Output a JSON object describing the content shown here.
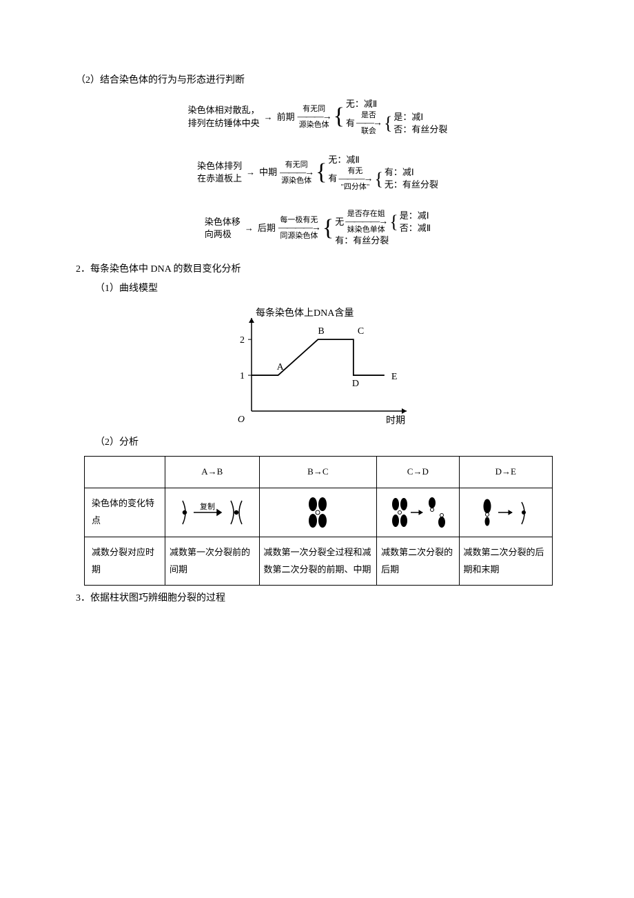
{
  "section2": {
    "label": "（2）结合染色体的行为与形态进行判断",
    "flow1": {
      "start_l1": "染色体相对散乱，",
      "start_l2": "排列在纺锤体中央",
      "phase": "前期",
      "cond_top": "有无同",
      "cond_bot": "源染色体",
      "no_label": "无：减Ⅱ",
      "yes_label": "有",
      "yes_top": "是否",
      "yes_bot": "联会",
      "r1": "是：减Ⅰ",
      "r2": "否：有丝分裂"
    },
    "flow2": {
      "start_l1": "染色体排列",
      "start_l2": "在赤道板上",
      "phase": "中期",
      "cond_top": "有无同",
      "cond_bot": "源染色体",
      "no_label": "无：减Ⅱ",
      "yes_label": "有",
      "yes_top": "有无",
      "yes_bot": "\"四分体\"",
      "r1": "有：减Ⅰ",
      "r2": "无：有丝分裂"
    },
    "flow3": {
      "start_l1": "染色体移",
      "start_l2": "向两极",
      "phase": "后期",
      "cond_top": "每一极有无",
      "cond_bot": "同源染色体",
      "no_label": "无",
      "no_top": "是否存在姐",
      "no_bot": "妹染色单体",
      "nr1": "是：减Ⅰ",
      "nr2": "否：减Ⅱ",
      "yes_label": "有：有丝分裂"
    }
  },
  "item2": {
    "heading": "2．每条染色体中 DNA 的数目变化分析",
    "sub1": "（1）曲线模型",
    "sub2": "（2）分析",
    "chart": {
      "title": "每条染色体上DNA含量",
      "xlabel": "时期",
      "ylabel_ticks": [
        "1",
        "2"
      ],
      "origin": "O",
      "points": [
        "A",
        "B",
        "C",
        "D",
        "E"
      ],
      "line_color": "#000000",
      "axis_color": "#000000",
      "bg": "#ffffff",
      "xlim": [
        0,
        7
      ],
      "ylim": [
        0,
        2.6
      ],
      "coords": {
        "A": [
          1.2,
          1
        ],
        "B": [
          3.0,
          2
        ],
        "C": [
          4.6,
          2
        ],
        "D": [
          4.6,
          1
        ],
        "E": [
          6.0,
          1
        ]
      },
      "y_ticks": [
        1,
        2
      ]
    },
    "table": {
      "cols": [
        "",
        "A→B",
        "B→C",
        "C→D",
        "D→E"
      ],
      "row1_label": "染色体的变化特点",
      "row1_replication_label": "复制",
      "row2_label": "减数分裂对应时期",
      "row2_cells": [
        "减数第一次分裂前的间期",
        "减数第一次分裂全过程和减数第二次分裂的前期、中期",
        "减数第二次分裂的后期",
        "减数第二次分裂的后期和末期"
      ],
      "icon_stroke": "#000000",
      "icon_fill": "#000000"
    }
  },
  "item3": {
    "heading": "3．依据柱状图巧辨细胞分裂的过程"
  }
}
